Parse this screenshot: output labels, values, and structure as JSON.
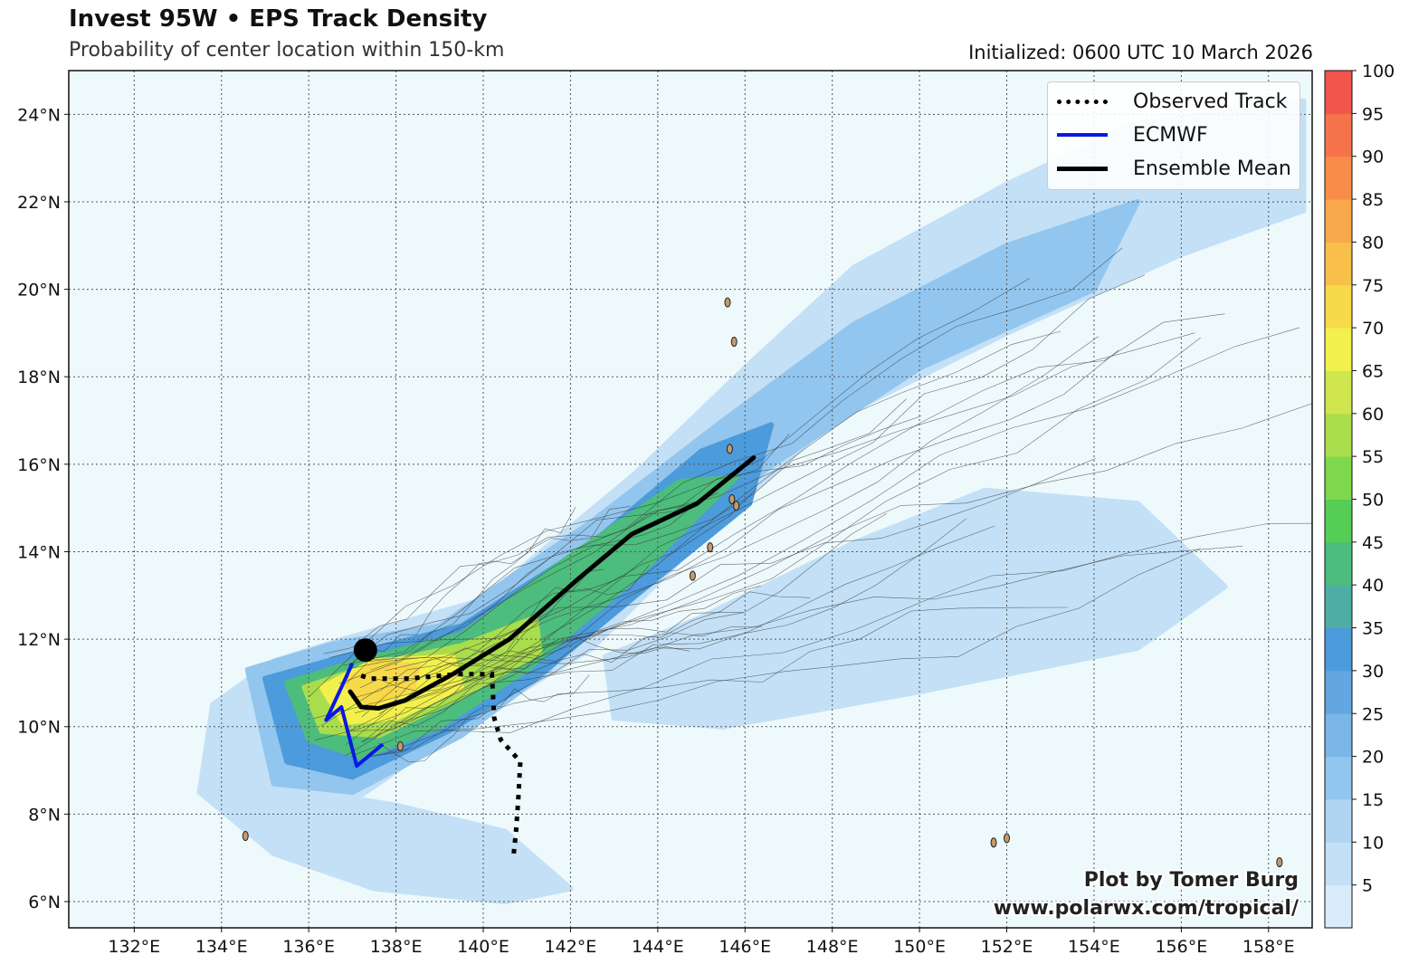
{
  "header": {
    "title": "Invest 95W • EPS Track Density",
    "subtitle": "Probability of center location within 150-km",
    "initialized": "Initialized: 0600 UTC 10 March 2026"
  },
  "map": {
    "lon_range": [
      130.5,
      159.0
    ],
    "lat_range": [
      5.4,
      25.0
    ],
    "lon_ticks": [
      "132°E",
      "134°E",
      "136°E",
      "138°E",
      "140°E",
      "142°E",
      "144°E",
      "146°E",
      "148°E",
      "150°E",
      "152°E",
      "154°E",
      "156°E",
      "158°E"
    ],
    "lat_ticks": [
      "6°N",
      "8°N",
      "10°N",
      "12°N",
      "14°N",
      "16°N",
      "18°N",
      "20°N",
      "22°N",
      "24°N"
    ],
    "grid": true,
    "background_color": "#eef9fc"
  },
  "legend": {
    "placement": "top-right",
    "items": [
      {
        "label": "Observed Track",
        "style": "dotted",
        "color": "#000000"
      },
      {
        "label": "ECMWF",
        "style": "solid",
        "color": "#0a18e6"
      },
      {
        "label": "Ensemble Mean",
        "style": "solid",
        "color": "#000000"
      }
    ]
  },
  "colorbar": {
    "levels": [
      0,
      5,
      10,
      15,
      20,
      25,
      30,
      35,
      40,
      45,
      50,
      55,
      60,
      65,
      70,
      75,
      80,
      85,
      90,
      95,
      100
    ],
    "tick_labels": [
      "5",
      "10",
      "15",
      "20",
      "25",
      "30",
      "35",
      "40",
      "45",
      "50",
      "55",
      "60",
      "65",
      "70",
      "75",
      "80",
      "85",
      "90",
      "95",
      "100"
    ],
    "colors": [
      "#d9ecfa",
      "#c3e0f6",
      "#afd5f3",
      "#93c6ee",
      "#7bb6e8",
      "#62a6e2",
      "#4c9bdc",
      "#4eaea6",
      "#4cbd7c",
      "#56ce55",
      "#7ed84e",
      "#aadd4c",
      "#cfe64e",
      "#f2f04c",
      "#f7d949",
      "#f8c04a",
      "#f8a84b",
      "#f88d4a",
      "#f6724a",
      "#f2554b"
    ]
  },
  "chart_data": {
    "type": "map",
    "observed_track": [
      [
        140.7,
        7.1
      ],
      [
        140.75,
        7.6
      ],
      [
        140.8,
        8.3
      ],
      [
        140.85,
        9.2
      ],
      [
        140.4,
        9.7
      ],
      [
        140.25,
        10.2
      ],
      [
        140.2,
        11.2
      ],
      [
        139.4,
        11.2
      ],
      [
        138.3,
        11.1
      ],
      [
        137.4,
        11.1
      ],
      [
        137.1,
        11.2
      ]
    ],
    "ecmwf_track": [
      [
        137.0,
        11.45
      ],
      [
        136.75,
        10.9
      ],
      [
        136.4,
        10.15
      ],
      [
        136.75,
        10.45
      ],
      [
        137.1,
        9.1
      ],
      [
        137.7,
        9.6
      ]
    ],
    "ensemble_mean_track": [
      [
        136.95,
        10.8
      ],
      [
        137.2,
        10.45
      ],
      [
        137.6,
        10.42
      ],
      [
        138.2,
        10.6
      ],
      [
        139.3,
        11.2
      ],
      [
        140.6,
        12.0
      ],
      [
        142.2,
        13.4
      ],
      [
        143.4,
        14.4
      ],
      [
        144.9,
        15.1
      ],
      [
        146.2,
        16.15
      ]
    ],
    "initial_position": [
      137.3,
      11.75
    ],
    "density_cores": [
      {
        "threshold": 5,
        "points": [
          [
            135.2,
            11.5
          ],
          [
            136.8,
            12.0
          ],
          [
            140.0,
            12.9
          ],
          [
            143.5,
            15.8
          ],
          [
            146.0,
            18.2
          ],
          [
            148.5,
            20.5
          ],
          [
            152.0,
            22.4
          ],
          [
            155.0,
            23.8
          ],
          [
            158.8,
            24.3
          ],
          [
            158.8,
            21.8
          ],
          [
            156.0,
            20.8
          ],
          [
            152.0,
            19.0
          ],
          [
            148.0,
            17.0
          ],
          [
            145.2,
            14.5
          ],
          [
            142.5,
            11.8
          ],
          [
            139.5,
            10.0
          ],
          [
            137.0,
            8.3
          ],
          [
            135.0,
            8.0
          ],
          [
            133.5,
            8.5
          ],
          [
            133.8,
            10.5
          ]
        ]
      },
      {
        "threshold": 5,
        "points": [
          [
            142.8,
            11.6
          ],
          [
            145.0,
            12.5
          ],
          [
            148.5,
            14.2
          ],
          [
            151.5,
            15.4
          ],
          [
            155.0,
            15.1
          ],
          [
            157.0,
            13.2
          ],
          [
            155.0,
            11.8
          ],
          [
            150.0,
            10.8
          ],
          [
            145.5,
            10.0
          ],
          [
            143.0,
            10.2
          ]
        ]
      },
      {
        "threshold": 5,
        "points": [
          [
            133.5,
            8.5
          ],
          [
            135.2,
            7.1
          ],
          [
            137.5,
            6.3
          ],
          [
            140.5,
            6.0
          ],
          [
            142.0,
            6.3
          ],
          [
            140.5,
            7.6
          ],
          [
            138.0,
            8.2
          ],
          [
            135.5,
            8.6
          ]
        ]
      },
      {
        "threshold": 15,
        "points": [
          [
            134.6,
            11.3
          ],
          [
            136.6,
            11.9
          ],
          [
            139.0,
            12.3
          ],
          [
            142.5,
            14.7
          ],
          [
            145.5,
            17.0
          ],
          [
            148.5,
            19.2
          ],
          [
            152.0,
            21.0
          ],
          [
            155.0,
            22.0
          ],
          [
            154.0,
            20.0
          ],
          [
            150.0,
            18.2
          ],
          [
            146.5,
            15.9
          ],
          [
            143.5,
            13.4
          ],
          [
            141.5,
            11.3
          ],
          [
            139.5,
            9.8
          ],
          [
            137.0,
            8.5
          ],
          [
            135.2,
            8.7
          ]
        ]
      },
      {
        "threshold": 30,
        "points": [
          [
            135.0,
            11.1
          ],
          [
            136.8,
            11.6
          ],
          [
            139.5,
            12.3
          ],
          [
            142.5,
            14.2
          ],
          [
            145.0,
            16.3
          ],
          [
            146.6,
            16.9
          ],
          [
            146.1,
            15.1
          ],
          [
            143.5,
            13.0
          ],
          [
            141.2,
            11.1
          ],
          [
            139.2,
            9.9
          ],
          [
            137.0,
            8.85
          ],
          [
            135.5,
            9.2
          ]
        ]
      },
      {
        "threshold": 40,
        "points": [
          [
            135.5,
            11.0
          ],
          [
            137.1,
            11.5
          ],
          [
            139.5,
            12.1
          ],
          [
            142.0,
            13.9
          ],
          [
            144.5,
            15.6
          ],
          [
            145.8,
            15.7
          ],
          [
            143.6,
            13.5
          ],
          [
            141.0,
            11.3
          ],
          [
            139.0,
            10.0
          ],
          [
            137.2,
            9.3
          ],
          [
            136.0,
            9.7
          ]
        ]
      },
      {
        "threshold": 55,
        "points": [
          [
            135.9,
            10.9
          ],
          [
            137.4,
            11.4
          ],
          [
            139.5,
            11.85
          ],
          [
            141.2,
            12.5
          ],
          [
            141.3,
            11.7
          ],
          [
            139.5,
            10.7
          ],
          [
            137.6,
            9.8
          ],
          [
            136.3,
            9.9
          ]
        ]
      },
      {
        "threshold": 65,
        "points": [
          [
            136.3,
            10.9
          ],
          [
            137.5,
            11.5
          ],
          [
            139.3,
            11.6
          ],
          [
            139.5,
            10.9
          ],
          [
            138.0,
            10.2
          ],
          [
            136.8,
            10.1
          ]
        ]
      },
      {
        "threshold": 70,
        "points": [
          [
            136.8,
            11.0
          ],
          [
            137.5,
            11.45
          ],
          [
            138.5,
            11.4
          ],
          [
            138.4,
            10.9
          ],
          [
            137.4,
            10.5
          ]
        ]
      }
    ],
    "islands": [
      [
        134.55,
        7.5
      ],
      [
        138.1,
        9.55
      ],
      [
        145.7,
        15.2
      ],
      [
        145.8,
        15.05
      ],
      [
        145.2,
        14.1
      ],
      [
        144.8,
        13.45
      ],
      [
        145.75,
        18.8
      ],
      [
        145.65,
        16.35
      ],
      [
        145.6,
        19.7
      ],
      [
        151.7,
        7.35
      ],
      [
        152.0,
        7.45
      ],
      [
        158.25,
        6.9
      ]
    ]
  },
  "credit": {
    "line1": "Plot by Tomer Burg",
    "line2": "www.polarwx.com/tropical/"
  }
}
